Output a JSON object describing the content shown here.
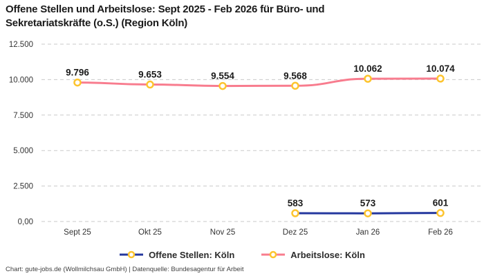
{
  "title": "Offene Stellen und Arbeitslose: Sept 2025 - Feb 2026 für Büro- und Sekretariatskräfte (o.S.) (Region Köln)",
  "footer": "Chart: gute-jobs.de (Wollmilchsau GmbH) | Datenquelle: Bundesagentur für Arbeit",
  "colors": {
    "open_positions_line": "#24379e",
    "unemployed_line": "#f87c8e",
    "marker_ring": "#fdc42e",
    "marker_fill": "#ffffff",
    "grid": "#c9c9c9",
    "axis_text": "#333333",
    "data_label_text": "#1a1a1a"
  },
  "chart_data": {
    "type": "line",
    "categories": [
      "Sept 25",
      "Okt 25",
      "Nov 25",
      "Dez 25",
      "Jan 26",
      "Feb 26"
    ],
    "series": [
      {
        "name": "Offene Stellen: Köln",
        "color": "#24379e",
        "values": [
          null,
          null,
          null,
          583,
          573,
          601
        ],
        "labels": [
          null,
          null,
          null,
          "583",
          "573",
          "601"
        ]
      },
      {
        "name": "Arbeitslose: Köln",
        "color": "#f87c8e",
        "values": [
          9796,
          9653,
          9554,
          9568,
          10062,
          10074
        ],
        "labels": [
          "9.796",
          "9.653",
          "9.554",
          "9.568",
          "10.062",
          "10.074"
        ]
      }
    ],
    "y_ticks": [
      {
        "value": 0,
        "label": "0,00"
      },
      {
        "value": 2500,
        "label": "2.500"
      },
      {
        "value": 5000,
        "label": "5.000"
      },
      {
        "value": 7500,
        "label": "7.500"
      },
      {
        "value": 10000,
        "label": "10.000"
      },
      {
        "value": 12500,
        "label": "12.500"
      }
    ],
    "ylim": [
      0,
      12500
    ],
    "grid": "dashed-horizontal",
    "legend_position": "bottom",
    "marker": "open-circle-yellow"
  }
}
